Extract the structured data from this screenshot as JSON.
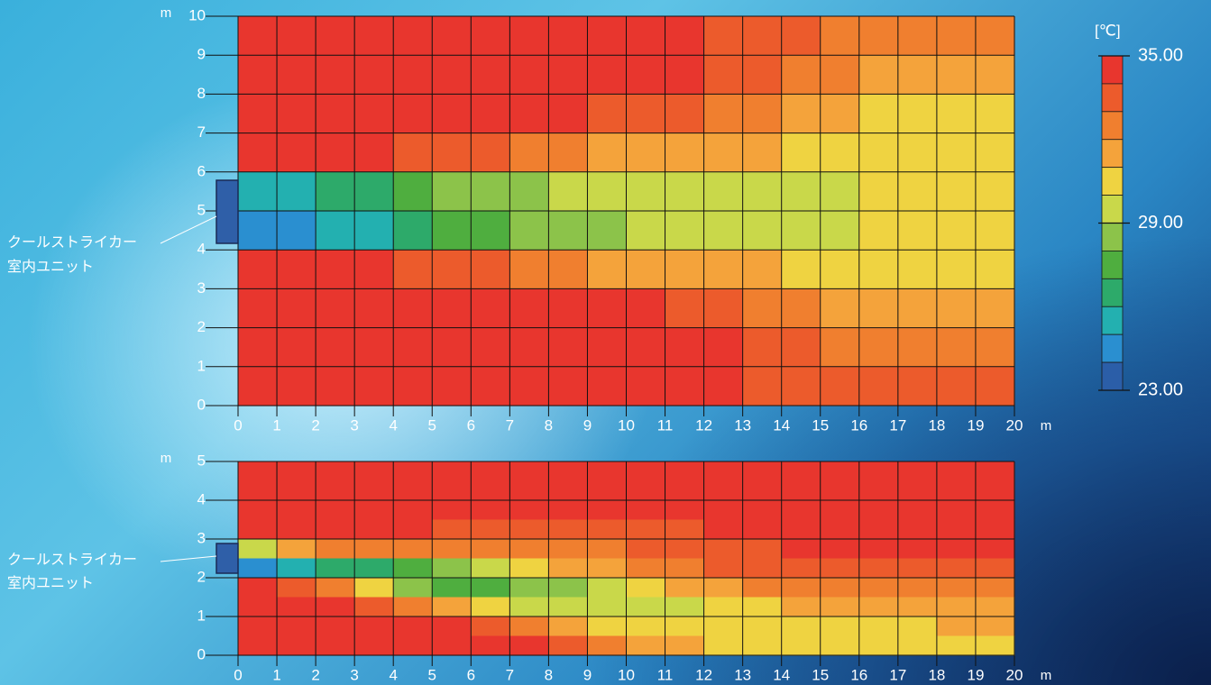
{
  "chart_data": [
    {
      "type": "heatmap",
      "xlabel": "m",
      "ylabel": "m",
      "annotation": [
        "クールストライカー",
        "室内ユニット"
      ],
      "xlim": [
        0,
        20
      ],
      "ylim": [
        0,
        10
      ],
      "xticks": [
        0,
        1,
        2,
        3,
        4,
        5,
        6,
        7,
        8,
        9,
        10,
        11,
        12,
        13,
        14,
        15,
        16,
        17,
        18,
        19,
        20
      ],
      "yticks": [
        0,
        1,
        2,
        3,
        4,
        5,
        6,
        7,
        8,
        9,
        10
      ],
      "x": [
        0.5,
        1.5,
        2.5,
        3.5,
        4.5,
        5.5,
        6.5,
        7.5,
        8.5,
        9.5,
        10.5,
        11.5,
        12.5,
        13.5,
        14.5,
        15.5,
        16.5,
        17.5,
        18.5,
        19.5
      ],
      "y": [
        9.5,
        8.5,
        7.5,
        6.5,
        5.5,
        4.5,
        3.5,
        2.5,
        1.5,
        0.5
      ],
      "z": [
        [
          34.5,
          34.5,
          34.5,
          34.5,
          34.5,
          34.5,
          34.5,
          34.5,
          34.5,
          34.5,
          34.5,
          34.5,
          33.5,
          33.5,
          33.5,
          32.5,
          32.5,
          32.5,
          32.5,
          32.5
        ],
        [
          34.5,
          34.5,
          34.5,
          34.5,
          34.5,
          34.5,
          34.5,
          34.5,
          34.5,
          34.5,
          34.5,
          34.5,
          33.5,
          33.5,
          32.5,
          32.5,
          31.5,
          31.5,
          31.5,
          31.5
        ],
        [
          34.5,
          34.5,
          34.5,
          34.5,
          34.5,
          34.5,
          34.5,
          34.5,
          34.5,
          33.5,
          33.5,
          33.5,
          32.5,
          32.5,
          31.5,
          31.5,
          30.5,
          30.5,
          30.5,
          30.5
        ],
        [
          34.5,
          34.5,
          34.5,
          34.5,
          33.5,
          33.5,
          33.5,
          32.5,
          32.5,
          31.5,
          31.5,
          31.5,
          31.5,
          31.5,
          30.5,
          30.5,
          30.5,
          30.5,
          30.5,
          30.5
        ],
        [
          25.5,
          25.5,
          26.5,
          26.5,
          27.5,
          28.5,
          28.5,
          28.5,
          29.5,
          29.5,
          29.5,
          29.5,
          29.5,
          29.5,
          29.5,
          29.5,
          30.5,
          30.5,
          30.5,
          30.5
        ],
        [
          24.5,
          24.5,
          25.5,
          25.5,
          26.5,
          27.5,
          27.5,
          28.5,
          28.5,
          28.5,
          29.5,
          29.5,
          29.5,
          29.5,
          29.5,
          29.5,
          30.5,
          30.5,
          30.5,
          30.5
        ],
        [
          34.5,
          34.5,
          34.5,
          34.5,
          33.5,
          33.5,
          33.5,
          32.5,
          32.5,
          31.5,
          31.5,
          31.5,
          31.5,
          31.5,
          30.5,
          30.5,
          30.5,
          30.5,
          30.5,
          30.5
        ],
        [
          34.5,
          34.5,
          34.5,
          34.5,
          34.5,
          34.5,
          34.5,
          34.5,
          34.5,
          34.5,
          34.5,
          33.5,
          33.5,
          32.5,
          32.5,
          31.5,
          31.5,
          31.5,
          31.5,
          31.5
        ],
        [
          34.5,
          34.5,
          34.5,
          34.5,
          34.5,
          34.5,
          34.5,
          34.5,
          34.5,
          34.5,
          34.5,
          34.5,
          34.5,
          33.5,
          33.5,
          32.5,
          32.5,
          32.5,
          32.5,
          32.5
        ],
        [
          34.5,
          34.5,
          34.5,
          34.5,
          34.5,
          34.5,
          34.5,
          34.5,
          34.5,
          34.5,
          34.5,
          34.5,
          34.5,
          33.5,
          33.5,
          33.5,
          33.5,
          33.5,
          33.5,
          33.5
        ]
      ],
      "colorbar": {
        "title": "[℃]",
        "clim": [
          23,
          35
        ],
        "ticks": [
          {
            "value": 35,
            "label": "35.00"
          },
          {
            "value": 29,
            "label": "29.00"
          },
          {
            "value": 23,
            "label": "23.00"
          }
        ],
        "colors": [
          "#e8362e",
          "#ec5b2c",
          "#f07f2f",
          "#f4a33b",
          "#efd341",
          "#c9d84a",
          "#8cc34a",
          "#4fae3f",
          "#2daa6a",
          "#23b0b0",
          "#2a8fd0",
          "#2b5ea8"
        ]
      }
    },
    {
      "type": "heatmap",
      "xlabel": "m",
      "ylabel": "m",
      "annotation": [
        "クールストライカー",
        "室内ユニット"
      ],
      "xlim": [
        0,
        20
      ],
      "ylim": [
        0,
        5
      ],
      "xticks": [
        0,
        1,
        2,
        3,
        4,
        5,
        6,
        7,
        8,
        9,
        10,
        11,
        12,
        13,
        14,
        15,
        16,
        17,
        18,
        19,
        20
      ],
      "yticks": [
        0,
        1,
        2,
        3,
        4,
        5
      ],
      "x": [
        0.5,
        1.5,
        2.5,
        3.5,
        4.5,
        5.5,
        6.5,
        7.5,
        8.5,
        9.5,
        10.5,
        11.5,
        12.5,
        13.5,
        14.5,
        15.5,
        16.5,
        17.5,
        18.5,
        19.5
      ],
      "y": [
        4.75,
        4.25,
        3.75,
        3.25,
        2.75,
        2.25,
        1.75,
        1.25,
        0.75,
        0.25
      ],
      "z": [
        [
          34.5,
          34.5,
          34.5,
          34.5,
          34.5,
          34.5,
          34.5,
          34.5,
          34.5,
          34.5,
          34.5,
          34.5,
          34.5,
          34.5,
          34.5,
          34.5,
          34.5,
          34.5,
          34.5,
          34.5
        ],
        [
          34.5,
          34.5,
          34.5,
          34.5,
          34.5,
          34.5,
          34.5,
          34.5,
          34.5,
          34.5,
          34.5,
          34.5,
          34.5,
          34.5,
          34.5,
          34.5,
          34.5,
          34.5,
          34.5,
          34.5
        ],
        [
          34.5,
          34.5,
          34.5,
          34.5,
          34.5,
          34.5,
          34.5,
          34.5,
          34.5,
          34.5,
          34.5,
          34.5,
          34.5,
          34.5,
          34.5,
          34.5,
          34.5,
          34.5,
          34.5,
          34.5
        ],
        [
          34.5,
          34.5,
          34.5,
          34.5,
          34.5,
          33.5,
          33.5,
          33.5,
          33.5,
          33.5,
          33.5,
          33.5,
          34.5,
          34.5,
          34.5,
          34.5,
          34.5,
          34.5,
          34.5,
          34.5
        ],
        [
          29.5,
          31.5,
          32.5,
          32.5,
          32.5,
          32.5,
          32.5,
          32.5,
          32.5,
          32.5,
          33.5,
          33.5,
          33.5,
          33.5,
          34.5,
          34.5,
          34.5,
          34.5,
          34.5,
          34.5
        ],
        [
          24.5,
          25.5,
          26.5,
          26.5,
          27.5,
          28.5,
          29.5,
          30.5,
          31.5,
          31.5,
          32.5,
          32.5,
          33.5,
          33.5,
          33.5,
          33.5,
          33.5,
          33.5,
          33.5,
          33.5
        ],
        [
          34.5,
          33.5,
          32.5,
          30.5,
          28.5,
          27.5,
          27.5,
          28.5,
          28.5,
          29.5,
          30.5,
          31.5,
          31.5,
          32.5,
          32.5,
          32.5,
          32.5,
          32.5,
          32.5,
          32.5
        ],
        [
          34.5,
          34.5,
          34.5,
          33.5,
          32.5,
          31.5,
          30.5,
          29.5,
          29.5,
          29.5,
          29.5,
          29.5,
          30.5,
          30.5,
          31.5,
          31.5,
          31.5,
          31.5,
          31.5,
          31.5
        ],
        [
          34.5,
          34.5,
          34.5,
          34.5,
          34.5,
          34.5,
          33.5,
          32.5,
          31.5,
          30.5,
          30.5,
          30.5,
          30.5,
          30.5,
          30.5,
          30.5,
          30.5,
          30.5,
          31.5,
          31.5
        ],
        [
          34.5,
          34.5,
          34.5,
          34.5,
          34.5,
          34.5,
          34.5,
          34.5,
          33.5,
          32.5,
          31.5,
          31.5,
          30.5,
          30.5,
          30.5,
          30.5,
          30.5,
          30.5,
          30.5,
          30.5
        ]
      ]
    }
  ]
}
